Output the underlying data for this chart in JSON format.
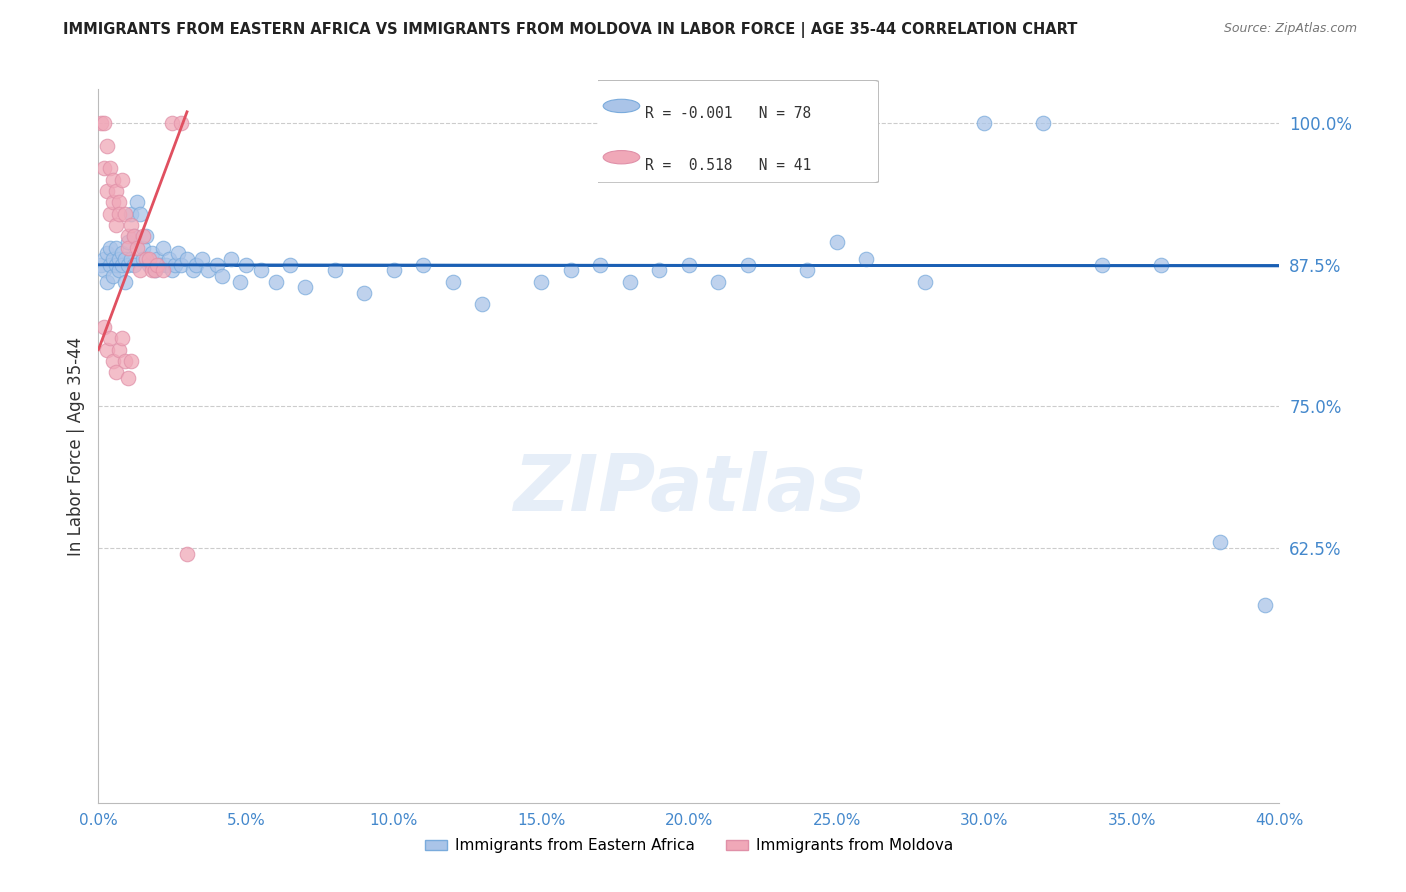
{
  "title": "IMMIGRANTS FROM EASTERN AFRICA VS IMMIGRANTS FROM MOLDOVA IN LABOR FORCE | AGE 35-44 CORRELATION CHART",
  "source": "Source: ZipAtlas.com",
  "ylabel": "In Labor Force | Age 35-44",
  "legend_label1": "Immigrants from Eastern Africa",
  "legend_label2": "Immigrants from Moldova",
  "R1": -0.001,
  "N1": 78,
  "R2": 0.518,
  "N2": 41,
  "color1": "#aac4e8",
  "color2": "#f0a8b8",
  "trendline1_color": "#1a5fb4",
  "trendline2_color": "#e05060",
  "axis_label_color": "#4488cc",
  "xlim": [
    0.0,
    0.4
  ],
  "ylim": [
    0.4,
    1.03
  ],
  "yticks": [
    0.625,
    0.75,
    0.875,
    1.0
  ],
  "xticks": [
    0.0,
    0.05,
    0.1,
    0.15,
    0.2,
    0.25,
    0.3,
    0.35,
    0.4
  ],
  "hline_y": 0.875,
  "hline_color": "#1a5fb4",
  "watermark": "ZIPatlas",
  "blue_scatter_x": [
    0.001,
    0.002,
    0.002,
    0.003,
    0.003,
    0.004,
    0.004,
    0.005,
    0.005,
    0.006,
    0.006,
    0.007,
    0.007,
    0.008,
    0.008,
    0.009,
    0.009,
    0.01,
    0.01,
    0.011,
    0.011,
    0.012,
    0.012,
    0.013,
    0.014,
    0.015,
    0.015,
    0.016,
    0.017,
    0.018,
    0.019,
    0.02,
    0.021,
    0.022,
    0.023,
    0.024,
    0.025,
    0.026,
    0.027,
    0.028,
    0.03,
    0.032,
    0.033,
    0.035,
    0.037,
    0.04,
    0.042,
    0.045,
    0.048,
    0.05,
    0.055,
    0.06,
    0.065,
    0.07,
    0.08,
    0.09,
    0.1,
    0.11,
    0.12,
    0.13,
    0.15,
    0.16,
    0.17,
    0.18,
    0.19,
    0.2,
    0.21,
    0.22,
    0.24,
    0.25,
    0.26,
    0.28,
    0.3,
    0.32,
    0.34,
    0.36,
    0.38,
    0.395
  ],
  "blue_scatter_y": [
    0.875,
    0.88,
    0.87,
    0.885,
    0.86,
    0.89,
    0.875,
    0.88,
    0.865,
    0.875,
    0.89,
    0.88,
    0.87,
    0.885,
    0.875,
    0.88,
    0.86,
    0.895,
    0.875,
    0.92,
    0.88,
    0.9,
    0.875,
    0.93,
    0.92,
    0.89,
    0.88,
    0.9,
    0.875,
    0.885,
    0.87,
    0.88,
    0.875,
    0.89,
    0.875,
    0.88,
    0.87,
    0.875,
    0.885,
    0.875,
    0.88,
    0.87,
    0.875,
    0.88,
    0.87,
    0.875,
    0.865,
    0.88,
    0.86,
    0.875,
    0.87,
    0.86,
    0.875,
    0.855,
    0.87,
    0.85,
    0.87,
    0.875,
    0.86,
    0.84,
    0.86,
    0.87,
    0.875,
    0.86,
    0.87,
    0.875,
    0.86,
    0.875,
    0.87,
    0.895,
    0.88,
    0.86,
    1.0,
    1.0,
    0.875,
    0.875,
    0.63,
    0.575
  ],
  "pink_scatter_x": [
    0.001,
    0.002,
    0.002,
    0.003,
    0.003,
    0.004,
    0.004,
    0.005,
    0.005,
    0.006,
    0.006,
    0.007,
    0.007,
    0.008,
    0.009,
    0.01,
    0.01,
    0.011,
    0.012,
    0.013,
    0.014,
    0.015,
    0.016,
    0.017,
    0.018,
    0.019,
    0.02,
    0.022,
    0.025,
    0.028,
    0.002,
    0.003,
    0.004,
    0.005,
    0.006,
    0.007,
    0.008,
    0.009,
    0.01,
    0.011,
    0.03
  ],
  "pink_scatter_y": [
    1.0,
    1.0,
    0.96,
    0.98,
    0.94,
    0.96,
    0.92,
    0.95,
    0.93,
    0.94,
    0.91,
    0.93,
    0.92,
    0.95,
    0.92,
    0.9,
    0.89,
    0.91,
    0.9,
    0.89,
    0.87,
    0.9,
    0.88,
    0.88,
    0.87,
    0.87,
    0.875,
    0.87,
    1.0,
    1.0,
    0.82,
    0.8,
    0.81,
    0.79,
    0.78,
    0.8,
    0.81,
    0.79,
    0.775,
    0.79,
    0.62
  ],
  "trendline1_x": [
    0.0,
    0.4
  ],
  "trendline1_y": [
    0.875,
    0.874
  ],
  "trendline2_x": [
    0.0,
    0.03
  ],
  "trendline2_y": [
    0.8,
    1.01
  ]
}
